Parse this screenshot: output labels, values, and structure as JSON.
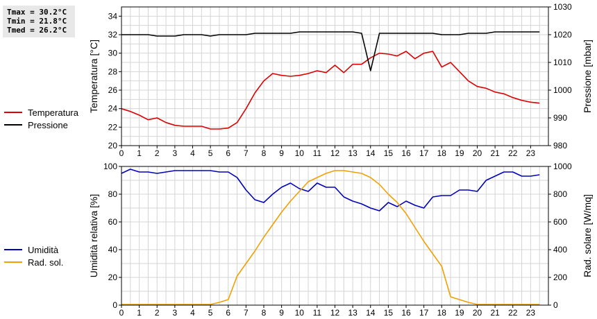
{
  "stats": {
    "tmax": "Tmax = 30.2°C",
    "tmin": "Tmin = 21.8°C",
    "tmed": "Tmed = 26.2°C"
  },
  "legend_top": [
    "Temperatura",
    "Pressione"
  ],
  "legend_bottom": [
    "Umidità",
    "Rad. sol."
  ],
  "colors": {
    "temperatura": "#dd0000",
    "pressione": "#000000",
    "umidita": "#0000bb",
    "rad": "#f0a000",
    "grid": "#d4d4d4"
  },
  "chart_data": [
    {
      "type": "line",
      "xlim": [
        0,
        24
      ],
      "x_ticks": [
        0,
        1,
        2,
        3,
        4,
        5,
        6,
        7,
        8,
        9,
        10,
        11,
        12,
        13,
        14,
        15,
        16,
        17,
        18,
        19,
        20,
        21,
        22,
        23
      ],
      "ylabel": "Temperatura [°C]",
      "ylim": [
        20,
        35
      ],
      "y_ticks": [
        20,
        22,
        24,
        26,
        28,
        30,
        32,
        34
      ],
      "y2label": "Pressione [mbar]",
      "y2lim": [
        980,
        1030
      ],
      "y2_ticks": [
        980,
        990,
        1000,
        1010,
        1020,
        1030
      ],
      "series": [
        {
          "name": "Temperatura",
          "axis": "left",
          "x": [
            0,
            0.5,
            1,
            1.5,
            2,
            2.5,
            3,
            3.5,
            4,
            4.5,
            5,
            5.5,
            6,
            6.5,
            7,
            7.5,
            8,
            8.5,
            9,
            9.5,
            10,
            10.5,
            11,
            11.5,
            12,
            12.5,
            13,
            13.5,
            14,
            14.5,
            15,
            15.5,
            16,
            16.5,
            17,
            17.5,
            18,
            18.5,
            19,
            19.5,
            20,
            20.5,
            21,
            21.5,
            22,
            22.5,
            23,
            23.5
          ],
          "values": [
            24.0,
            23.7,
            23.3,
            22.8,
            23.0,
            22.5,
            22.2,
            22.1,
            22.1,
            22.1,
            21.8,
            21.8,
            21.9,
            22.5,
            24.0,
            25.7,
            27.0,
            27.8,
            27.6,
            27.5,
            27.6,
            27.8,
            28.1,
            27.9,
            28.7,
            27.9,
            28.8,
            28.8,
            29.5,
            30.0,
            29.9,
            29.7,
            30.2,
            29.4,
            30.0,
            30.2,
            28.5,
            29.0,
            28.0,
            27.0,
            26.4,
            26.2,
            25.8,
            25.6,
            25.2,
            24.9,
            24.7,
            24.6
          ],
          "color": "#dd0000"
        },
        {
          "name": "Pressione",
          "axis": "right",
          "x": [
            0,
            0.5,
            1,
            1.5,
            2,
            2.5,
            3,
            3.5,
            4,
            4.5,
            5,
            5.5,
            6,
            6.5,
            7,
            7.5,
            8,
            8.5,
            9,
            9.5,
            10,
            10.5,
            11,
            11.5,
            12,
            12.5,
            13,
            13.5,
            14,
            14.5,
            15,
            15.5,
            16,
            16.5,
            17,
            17.5,
            18,
            18.5,
            19,
            19.5,
            20,
            20.5,
            21,
            21.5,
            22,
            22.5,
            23,
            23.5
          ],
          "values": [
            1020,
            1020,
            1020,
            1020,
            1019.5,
            1019.5,
            1019.5,
            1020,
            1020,
            1020,
            1019.5,
            1020,
            1020,
            1020,
            1020,
            1020.5,
            1020.5,
            1020.5,
            1020.5,
            1020.5,
            1021,
            1021,
            1021,
            1021,
            1021,
            1021,
            1021,
            1020.5,
            1007,
            1020.5,
            1020.5,
            1020.5,
            1020.5,
            1020.5,
            1020.5,
            1020.5,
            1020,
            1020,
            1020,
            1020.5,
            1020.5,
            1020.5,
            1021,
            1021,
            1021,
            1021,
            1021,
            1021
          ],
          "color": "#000000"
        }
      ]
    },
    {
      "type": "line",
      "xlim": [
        0,
        24
      ],
      "x_ticks": [
        0,
        1,
        2,
        3,
        4,
        5,
        6,
        7,
        8,
        9,
        10,
        11,
        12,
        13,
        14,
        15,
        16,
        17,
        18,
        19,
        20,
        21,
        22,
        23
      ],
      "ylabel": "Umidità relativa [%]",
      "ylim": [
        0,
        100
      ],
      "y_ticks": [
        0,
        20,
        40,
        60,
        80,
        100
      ],
      "y2label": "Rad. solare [W/mq]",
      "y2lim": [
        0,
        1000
      ],
      "y2_ticks": [
        0,
        200,
        400,
        600,
        800,
        1000
      ],
      "series": [
        {
          "name": "Umidità",
          "axis": "left",
          "x": [
            0,
            0.5,
            1,
            1.5,
            2,
            2.5,
            3,
            3.5,
            4,
            4.5,
            5,
            5.5,
            6,
            6.5,
            7,
            7.5,
            8,
            8.5,
            9,
            9.5,
            10,
            10.5,
            11,
            11.5,
            12,
            12.5,
            13,
            13.5,
            14,
            14.5,
            15,
            15.5,
            16,
            16.5,
            17,
            17.5,
            18,
            18.5,
            19,
            19.5,
            20,
            20.5,
            21,
            21.5,
            22,
            22.5,
            23,
            23.5
          ],
          "values": [
            95,
            98,
            96,
            96,
            95,
            96,
            97,
            97,
            97,
            97,
            97,
            96,
            96,
            92,
            83,
            76,
            74,
            80,
            85,
            88,
            84,
            82,
            88,
            85,
            85,
            78,
            75,
            73,
            70,
            68,
            74,
            71,
            75,
            72,
            70,
            78,
            79,
            79,
            83,
            83,
            82,
            90,
            93,
            96,
            96,
            93,
            93,
            94
          ],
          "color": "#0000bb"
        },
        {
          "name": "Rad. sol.",
          "axis": "right",
          "x": [
            0,
            0.5,
            1,
            1.5,
            2,
            2.5,
            3,
            3.5,
            4,
            4.5,
            5,
            5.5,
            6,
            6.5,
            7,
            7.5,
            8,
            8.5,
            9,
            9.5,
            10,
            10.5,
            11,
            11.5,
            12,
            12.5,
            13,
            13.5,
            14,
            14.5,
            15,
            15.5,
            16,
            16.5,
            17,
            17.5,
            18,
            18.5,
            19,
            19.5,
            20,
            20.5,
            21,
            21.5,
            22,
            22.5,
            23,
            23.5
          ],
          "values": [
            5,
            5,
            5,
            5,
            5,
            5,
            5,
            5,
            5,
            5,
            5,
            20,
            40,
            210,
            300,
            390,
            490,
            580,
            670,
            750,
            820,
            890,
            920,
            950,
            970,
            970,
            960,
            950,
            920,
            870,
            800,
            740,
            660,
            560,
            460,
            370,
            280,
            60,
            40,
            20,
            5,
            5,
            5,
            5,
            5,
            5,
            5,
            5
          ],
          "color": "#f0a000"
        }
      ]
    }
  ]
}
